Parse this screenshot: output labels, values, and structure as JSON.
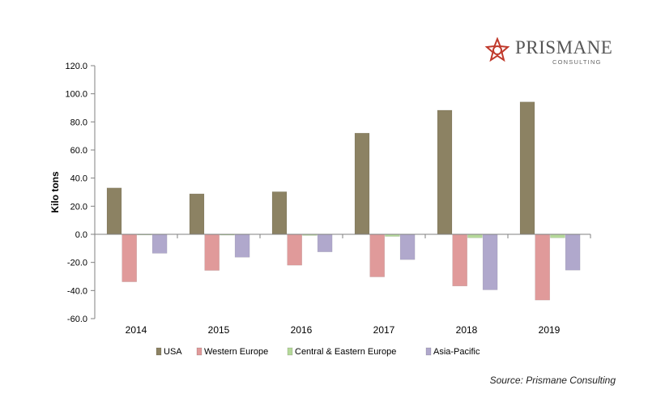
{
  "brand": {
    "name": "PRISMANE",
    "sub": "CONSULTING",
    "mark_color": "#c0392b"
  },
  "source": "Source: Prismane  Consulting",
  "chart_data": {
    "type": "bar",
    "categories": [
      "2014",
      "2015",
      "2016",
      "2017",
      "2018",
      "2019"
    ],
    "series": [
      {
        "name": "USA",
        "color": "#8c8263",
        "values": [
          33.0,
          28.8,
          30.3,
          72.0,
          88.3,
          94.2
        ]
      },
      {
        "name": "Western Europe",
        "color": "#e09a9a",
        "values": [
          -33.8,
          -25.7,
          -22.0,
          -30.3,
          -36.8,
          -46.8
        ]
      },
      {
        "name": "Central & Eastern Europe",
        "color": "#b5d99a",
        "values": [
          -0.5,
          -0.6,
          -0.8,
          -1.5,
          -2.5,
          -2.5
        ]
      },
      {
        "name": "Asia-Pacific",
        "color": "#b0a8cc",
        "values": [
          -13.5,
          -16.3,
          -12.5,
          -18.0,
          -39.5,
          -25.5
        ]
      }
    ],
    "ylabel": "Kilo tons",
    "xlabel": "",
    "title": "",
    "ylim": [
      -60,
      120
    ],
    "yticks": [
      "120.0",
      "100.0",
      "80.0",
      "60.0",
      "40.0",
      "20.0",
      "0.0",
      "-20.0",
      "-40.0",
      "-60.0"
    ],
    "legend_position": "bottom",
    "grid": false
  }
}
